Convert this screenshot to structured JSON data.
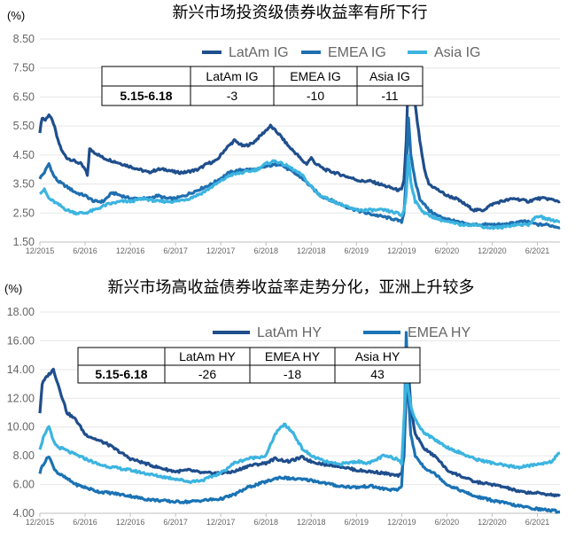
{
  "chart_data": [
    {
      "type": "line",
      "title": "新兴市场投资级债券收益率有所下行",
      "unit": "(%)",
      "yticks": [
        "8.50",
        "7.50",
        "6.50",
        "5.50",
        "4.50",
        "3.50",
        "2.50",
        "1.50"
      ],
      "ylim": [
        1.5,
        8.5
      ],
      "xticks": [
        "12/2015",
        "6/2016",
        "12/2016",
        "6/2017",
        "12/2017",
        "6/2018",
        "12/2018",
        "6/2019",
        "12/2019",
        "6/2020",
        "12/2020",
        "6/2021"
      ],
      "grid": true,
      "legend_position": "top-right",
      "series": [
        {
          "name": "LatAm IG",
          "color": "#1f4e8c",
          "x": [
            0,
            0.05,
            0.12,
            0.2,
            0.3,
            0.4,
            0.5,
            0.6,
            0.75,
            0.9,
            1.0,
            1.05,
            1.1,
            1.2,
            1.4,
            1.6,
            1.8,
            2.0,
            2.2,
            2.4,
            2.6,
            2.8,
            3.0,
            3.2,
            3.5,
            3.7,
            3.9,
            4.1,
            4.3,
            4.5,
            4.7,
            4.9,
            5.1,
            5.3,
            5.5,
            5.7,
            5.8,
            5.9,
            6.0,
            6.1,
            6.3,
            6.5,
            6.7,
            6.9,
            7.1,
            7.3,
            7.5,
            7.7,
            7.9,
            8.0,
            8.05,
            8.1,
            8.15,
            8.2,
            8.3,
            8.4,
            8.5,
            8.6,
            8.8,
            9.0,
            9.2,
            9.4,
            9.6,
            9.8,
            10.0,
            10.2,
            10.5,
            10.8,
            11.0,
            11.2,
            11.5
          ],
          "y": [
            5.3,
            5.8,
            5.7,
            5.9,
            5.6,
            5.0,
            4.6,
            4.4,
            4.3,
            4.2,
            4.0,
            3.8,
            4.7,
            4.6,
            4.4,
            4.3,
            4.2,
            4.1,
            4.0,
            3.9,
            4.0,
            4.0,
            3.9,
            3.9,
            4.0,
            4.2,
            4.3,
            4.7,
            5.0,
            4.8,
            4.9,
            5.2,
            5.5,
            5.2,
            4.8,
            4.5,
            4.3,
            4.2,
            4.4,
            4.2,
            4.0,
            3.9,
            3.8,
            3.7,
            3.6,
            3.6,
            3.5,
            3.4,
            3.3,
            3.3,
            3.6,
            5.0,
            7.3,
            6.5,
            6.2,
            5.0,
            4.0,
            3.5,
            3.3,
            3.1,
            3.0,
            2.8,
            2.6,
            2.6,
            2.8,
            2.9,
            3.0,
            2.9,
            3.0,
            3.0,
            2.9
          ]
        },
        {
          "name": "EMEA IG",
          "color": "#1f6fb0",
          "x": [
            0,
            0.1,
            0.2,
            0.3,
            0.4,
            0.6,
            0.8,
            1.0,
            1.2,
            1.4,
            1.6,
            1.8,
            2.0,
            2.2,
            2.4,
            2.6,
            2.8,
            3.0,
            3.2,
            3.5,
            3.8,
            4.0,
            4.2,
            4.5,
            4.8,
            5.0,
            5.3,
            5.5,
            5.8,
            6.0,
            6.2,
            6.5,
            6.8,
            7.0,
            7.2,
            7.5,
            7.8,
            8.0,
            8.05,
            8.1,
            8.15,
            8.2,
            8.3,
            8.4,
            8.6,
            8.8,
            9.0,
            9.2,
            9.5,
            9.8,
            10.0,
            10.3,
            10.6,
            10.8,
            11.0,
            11.2,
            11.5
          ],
          "y": [
            3.7,
            3.9,
            4.2,
            3.8,
            3.6,
            3.4,
            3.2,
            3.1,
            2.9,
            2.9,
            3.2,
            3.1,
            3.0,
            3.0,
            3.0,
            3.1,
            3.0,
            3.0,
            3.1,
            3.3,
            3.5,
            3.7,
            3.9,
            4.0,
            4.0,
            4.1,
            4.2,
            4.0,
            3.7,
            3.4,
            3.1,
            2.9,
            2.7,
            2.6,
            2.5,
            2.4,
            2.3,
            2.2,
            2.5,
            3.8,
            5.8,
            4.5,
            3.6,
            3.0,
            2.6,
            2.4,
            2.3,
            2.2,
            2.1,
            2.1,
            2.1,
            2.1,
            2.2,
            2.2,
            2.1,
            2.1,
            2.0
          ]
        },
        {
          "name": "Asia IG",
          "color": "#3cb4e0",
          "x": [
            0,
            0.1,
            0.2,
            0.4,
            0.6,
            0.8,
            1.0,
            1.2,
            1.5,
            1.8,
            2.0,
            2.3,
            2.6,
            3.0,
            3.3,
            3.6,
            3.9,
            4.2,
            4.5,
            4.8,
            5.0,
            5.2,
            5.5,
            5.8,
            6.0,
            6.2,
            6.5,
            6.8,
            7.0,
            7.3,
            7.6,
            7.9,
            8.0,
            8.05,
            8.1,
            8.15,
            8.2,
            8.3,
            8.5,
            8.8,
            9.0,
            9.3,
            9.6,
            9.9,
            10.2,
            10.5,
            10.8,
            11.0,
            11.2,
            11.5
          ],
          "y": [
            3.2,
            3.3,
            3.0,
            2.8,
            2.6,
            2.5,
            2.5,
            2.6,
            2.8,
            2.9,
            2.9,
            3.0,
            2.9,
            2.9,
            3.0,
            3.2,
            3.5,
            3.8,
            3.9,
            4.0,
            4.2,
            4.3,
            4.1,
            3.8,
            3.4,
            3.1,
            2.9,
            2.7,
            2.6,
            2.6,
            2.6,
            2.5,
            2.4,
            2.6,
            3.1,
            4.5,
            3.6,
            2.9,
            2.5,
            2.3,
            2.2,
            2.1,
            2.1,
            2.0,
            2.0,
            2.1,
            2.1,
            2.4,
            2.3,
            2.2
          ]
        }
      ],
      "table": {
        "headers": [
          "",
          "LatAm IG",
          "EMEA IG",
          "Asia IG"
        ],
        "rows": [
          [
            "5.15-6.18",
            "-3",
            "-10",
            "-11"
          ]
        ]
      }
    },
    {
      "type": "line",
      "title": "新兴市场高收益债券收益率走势分化，亚洲上升较多",
      "unit": "(%)",
      "yticks": [
        "18.00",
        "16.00",
        "14.00",
        "12.00",
        "10.00",
        "8.00",
        "6.00",
        "4.00"
      ],
      "ylim": [
        4,
        18
      ],
      "xticks": [
        "12/2015",
        "6/2016",
        "12/2016",
        "6/2017",
        "12/2017",
        "6/2018",
        "12/2018",
        "6/2019",
        "12/2019",
        "6/2020",
        "12/2020",
        "6/2021"
      ],
      "grid": true,
      "legend_position": "top-right",
      "series": [
        {
          "name": "LatAm HY",
          "color": "#1f4e8c",
          "x": [
            0,
            0.05,
            0.15,
            0.3,
            0.4,
            0.5,
            0.6,
            0.8,
            1.0,
            1.2,
            1.5,
            1.8,
            2.0,
            2.3,
            2.6,
            3.0,
            3.3,
            3.6,
            4.0,
            4.3,
            4.6,
            5.0,
            5.2,
            5.5,
            5.8,
            6.0,
            6.3,
            6.6,
            7.0,
            7.3,
            7.6,
            7.9,
            8.0,
            8.05,
            8.1,
            8.15,
            8.2,
            8.3,
            8.5,
            8.8,
            9.0,
            9.3,
            9.6,
            10.0,
            10.3,
            10.6,
            11.0,
            11.3,
            11.5
          ],
          "y": [
            11.0,
            13.0,
            13.5,
            14.0,
            13.0,
            12.0,
            11.0,
            10.5,
            9.5,
            9.2,
            8.8,
            8.2,
            7.8,
            7.5,
            7.2,
            6.9,
            7.0,
            6.8,
            6.8,
            6.9,
            7.3,
            7.5,
            7.8,
            7.6,
            7.9,
            7.6,
            7.4,
            7.3,
            7.0,
            6.9,
            6.8,
            6.6,
            6.7,
            8.0,
            12.5,
            14.0,
            11.5,
            9.5,
            8.5,
            7.8,
            7.0,
            6.6,
            6.2,
            6.0,
            5.8,
            5.5,
            5.4,
            5.3,
            5.2
          ]
        },
        {
          "name": "EMEA HY",
          "color": "#1a73b5",
          "x": [
            0,
            0.05,
            0.2,
            0.3,
            0.4,
            0.6,
            0.8,
            1.0,
            1.3,
            1.6,
            2.0,
            2.3,
            2.6,
            3.0,
            3.3,
            3.6,
            4.0,
            4.3,
            4.6,
            5.0,
            5.3,
            5.6,
            6.0,
            6.3,
            6.6,
            7.0,
            7.3,
            7.6,
            7.9,
            8.0,
            8.05,
            8.1,
            8.15,
            8.2,
            8.3,
            8.5,
            8.8,
            9.0,
            9.3,
            9.6,
            10.0,
            10.3,
            10.6,
            11.0,
            11.3,
            11.5
          ],
          "y": [
            6.8,
            7.3,
            8.0,
            7.2,
            6.8,
            6.4,
            6.0,
            5.8,
            5.5,
            5.4,
            5.2,
            5.0,
            4.9,
            4.8,
            4.8,
            4.9,
            5.0,
            5.3,
            5.8,
            6.2,
            6.5,
            6.4,
            6.3,
            6.1,
            5.9,
            5.8,
            5.9,
            5.7,
            5.6,
            5.9,
            9.0,
            16.5,
            12.0,
            9.5,
            8.0,
            7.2,
            6.6,
            6.0,
            5.6,
            5.2,
            4.9,
            4.7,
            4.5,
            4.3,
            4.2,
            4.1
          ]
        },
        {
          "name": "Asia HY",
          "color": "#3cb4e0",
          "x": [
            0,
            0.1,
            0.2,
            0.3,
            0.4,
            0.5,
            0.7,
            1.0,
            1.3,
            1.6,
            2.0,
            2.3,
            2.6,
            3.0,
            3.3,
            3.6,
            4.0,
            4.3,
            4.6,
            5.0,
            5.2,
            5.4,
            5.6,
            5.8,
            6.0,
            6.3,
            6.6,
            7.0,
            7.3,
            7.6,
            7.9,
            8.0,
            8.05,
            8.1,
            8.2,
            8.3,
            8.5,
            8.8,
            9.0,
            9.3,
            9.6,
            10.0,
            10.3,
            10.6,
            11.0,
            11.3,
            11.5
          ],
          "y": [
            8.5,
            9.5,
            10.0,
            9.0,
            8.6,
            8.5,
            8.2,
            7.8,
            7.4,
            7.2,
            7.0,
            6.8,
            6.6,
            6.4,
            6.2,
            6.3,
            6.8,
            7.5,
            7.8,
            8.0,
            9.5,
            10.2,
            9.6,
            8.5,
            8.0,
            7.6,
            7.4,
            7.6,
            7.5,
            8.0,
            7.8,
            7.5,
            10.5,
            13.5,
            11.5,
            10.5,
            9.6,
            9.0,
            8.6,
            8.2,
            7.8,
            7.5,
            7.3,
            7.2,
            7.4,
            7.6,
            8.2
          ]
        }
      ],
      "table": {
        "headers": [
          "",
          "LatAm HY",
          "EMEA HY",
          "Asia HY"
        ],
        "rows": [
          [
            "5.15-6.18",
            "-26",
            "-18",
            "43"
          ]
        ]
      }
    }
  ]
}
